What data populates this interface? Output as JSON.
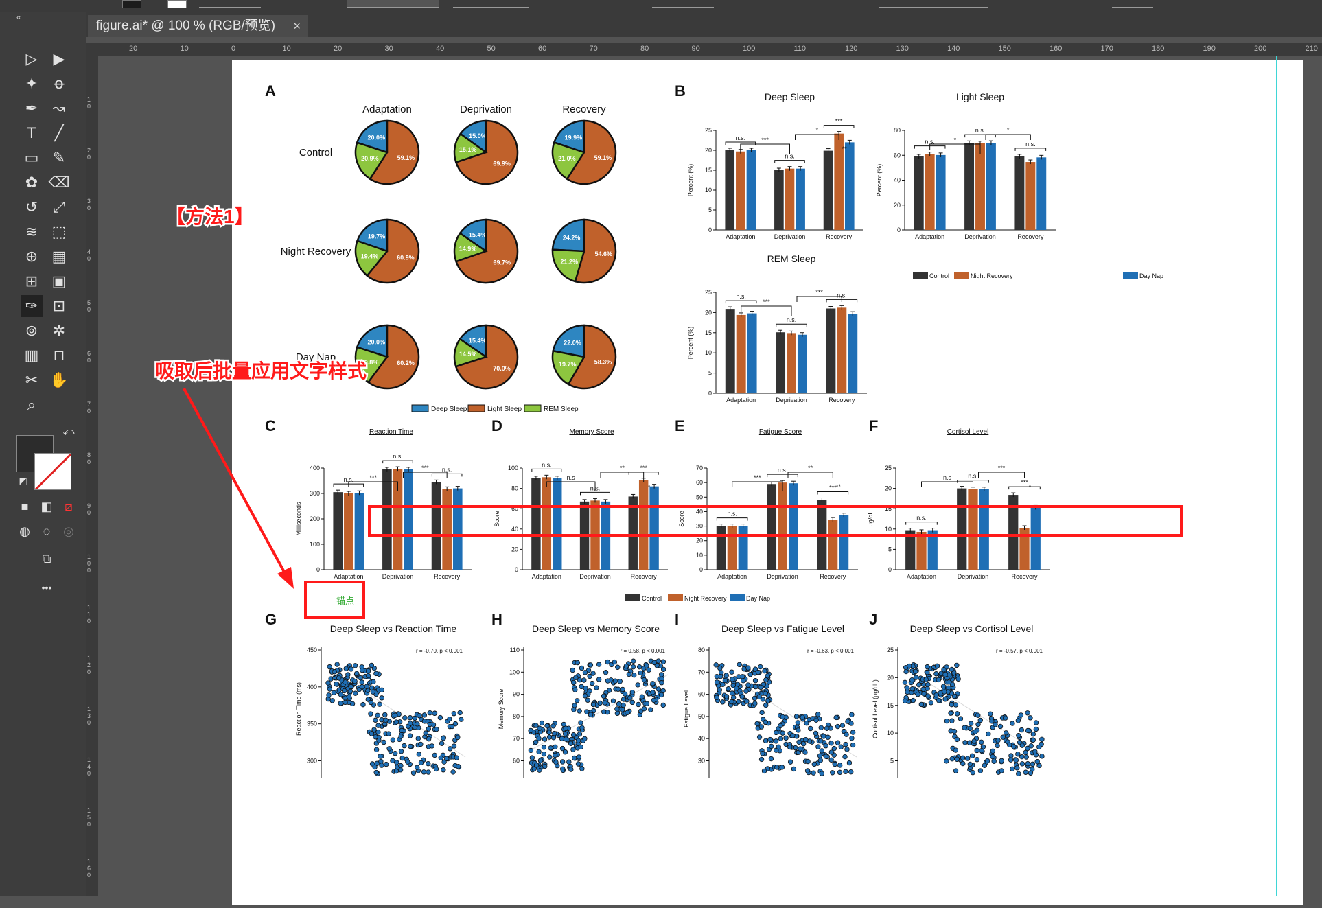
{
  "document": {
    "tab_title": "figure.ai* @ 100 % (RGB/预览)",
    "close": "×"
  },
  "toolbar": {
    "collapse": "«",
    "tools": [
      "selection-tool",
      "direct-selection-tool",
      "magic-wand-tool",
      "lasso-tool",
      "pen-tool",
      "curvature-tool",
      "type-tool",
      "line-tool",
      "rectangle-tool",
      "paintbrush-tool",
      "shaper-tool",
      "eraser-tool",
      "rotate-tool",
      "scale-tool",
      "warp-tool",
      "free-transform-tool",
      "shape-builder-tool",
      "perspective-grid-tool",
      "mesh-tool",
      "gradient-tool",
      "eyedropper-tool",
      "measure-tool",
      "blend-tool",
      "symbol-sprayer-tool",
      "column-graph-tool",
      "artboard-tool",
      "slice-tool",
      "hand-tool",
      "zoom-tool"
    ],
    "more": "•••"
  },
  "ruler": {
    "h_labels": [
      "20",
      "10",
      "0",
      "10",
      "20",
      "30",
      "40",
      "50",
      "60",
      "70",
      "80",
      "90",
      "100",
      "110",
      "120",
      "130",
      "140",
      "150",
      "160",
      "170",
      "180",
      "190",
      "200",
      "210"
    ],
    "v_labels": [
      "1 0",
      "2 0",
      "3 0",
      "4 0",
      "5 0",
      "6 0",
      "7 0",
      "8 0",
      "9 0",
      "1 0 0",
      "1 1 0",
      "1 2 0",
      "1 3 0",
      "1 4 0",
      "1 5 0",
      "1 6 0"
    ]
  },
  "annotations": {
    "method": "【方法1】",
    "apply": "吸取后批量应用文字样式",
    "eyedropper_hint": "锚点"
  },
  "colors": {
    "deep": "#2e86c1",
    "light": "#c0612b",
    "rem": "#8dc63f",
    "control": "#333333",
    "night": "#c0612b",
    "daynap": "#1f6fb5",
    "red": "#ff1a1a",
    "guide": "#3fd6d6"
  },
  "panel_labels": {
    "A": "A",
    "B": "B",
    "C": "C",
    "D": "D",
    "E": "E",
    "F": "F",
    "G": "G",
    "H": "H",
    "I": "I",
    "J": "J"
  },
  "pie_block": {
    "columns": [
      "Adaptation",
      "Deprivation",
      "Recovery"
    ],
    "rows": [
      "Control",
      "Night Recovery",
      "Day Nap"
    ],
    "legend": [
      "Deep Sleep",
      "Light Sleep",
      "REM Sleep"
    ]
  },
  "bar_legend": {
    "control": "Control",
    "night": "Night Recovery",
    "daynap": "Day Nap"
  },
  "c_titles": {
    "c": "Reaction Time",
    "d": "Memory Score",
    "e": "Fatigue Score",
    "f": "Cortisol Level"
  },
  "scatter_titles": {
    "g": "Deep Sleep vs Reaction Time",
    "h": "Deep Sleep vs Memory Score",
    "i": "Deep Sleep vs Fatigue Level",
    "j": "Deep Sleep vs Cortisol Level"
  },
  "chart_data": [
    {
      "type": "pie",
      "row": "Control",
      "column": "Adaptation",
      "labels": [
        "Deep Sleep",
        "Light Sleep",
        "REM Sleep"
      ],
      "values": [
        20.0,
        59.1,
        20.9
      ],
      "value_labels": [
        "20.0%",
        "59.1%",
        "20.9%"
      ]
    },
    {
      "type": "pie",
      "row": "Control",
      "column": "Deprivation",
      "labels": [
        "Deep Sleep",
        "Light Sleep",
        "REM Sleep"
      ],
      "values": [
        15.0,
        69.9,
        15.1
      ],
      "value_labels": [
        "15.0%",
        "69.9%",
        "15.1%"
      ]
    },
    {
      "type": "pie",
      "row": "Control",
      "column": "Recovery",
      "labels": [
        "Deep Sleep",
        "Light Sleep",
        "REM Sleep"
      ],
      "values": [
        19.9,
        59.1,
        21.0
      ],
      "value_labels": [
        "19.9%",
        "59.1%",
        "21.0%"
      ]
    },
    {
      "type": "pie",
      "row": "Night Recovery",
      "column": "Adaptation",
      "labels": [
        "Deep Sleep",
        "Light Sleep",
        "REM Sleep"
      ],
      "values": [
        19.7,
        60.9,
        19.4
      ],
      "value_labels": [
        "19.7%",
        "60.9%",
        "19.4%"
      ]
    },
    {
      "type": "pie",
      "row": "Night Recovery",
      "column": "Deprivation",
      "labels": [
        "Deep Sleep",
        "Light Sleep",
        "REM Sleep"
      ],
      "values": [
        15.4,
        69.7,
        14.9
      ],
      "value_labels": [
        "15.4%",
        "69.7%",
        "14.9%"
      ]
    },
    {
      "type": "pie",
      "row": "Night Recovery",
      "column": "Recovery",
      "labels": [
        "Deep Sleep",
        "Light Sleep",
        "REM Sleep"
      ],
      "values": [
        24.2,
        54.6,
        21.2
      ],
      "value_labels": [
        "24.2%",
        "54.6%",
        "21.2%"
      ]
    },
    {
      "type": "pie",
      "row": "Day Nap",
      "column": "Adaptation",
      "labels": [
        "Deep Sleep",
        "Light Sleep",
        "REM Sleep"
      ],
      "values": [
        20.0,
        60.2,
        19.8
      ],
      "value_labels": [
        "20.0%",
        "60.2%",
        "19.8%"
      ]
    },
    {
      "type": "pie",
      "row": "Day Nap",
      "column": "Deprivation",
      "labels": [
        "Deep Sleep",
        "Light Sleep",
        "REM Sleep"
      ],
      "values": [
        15.4,
        70.0,
        14.5
      ],
      "value_labels": [
        "15.4%",
        "70.0%",
        "14.5%"
      ]
    },
    {
      "type": "pie",
      "row": "Day Nap",
      "column": "Recovery",
      "labels": [
        "Deep Sleep",
        "Light Sleep",
        "REM Sleep"
      ],
      "values": [
        22.0,
        58.3,
        19.7
      ],
      "value_labels": [
        "22.0%",
        "58.3%",
        "19.7%"
      ]
    },
    {
      "type": "bar",
      "title": "Deep Sleep",
      "ylabel": "Percent (%)",
      "ylim": [
        0,
        25
      ],
      "yticks": [
        0,
        5,
        10,
        15,
        20,
        25
      ],
      "categories": [
        "Adaptation",
        "Deprivation",
        "Recovery"
      ],
      "series": [
        {
          "name": "Control",
          "values": [
            20.0,
            15.0,
            19.9
          ]
        },
        {
          "name": "Night Recovery",
          "values": [
            19.7,
            15.4,
            24.2
          ]
        },
        {
          "name": "Day Nap",
          "values": [
            20.0,
            15.4,
            22.0
          ]
        }
      ],
      "annotations": [
        "n.s.",
        "n.s.",
        "***",
        "***",
        "*",
        "**"
      ]
    },
    {
      "type": "bar",
      "title": "Light Sleep",
      "ylabel": "Percent (%)",
      "ylim": [
        0,
        80
      ],
      "yticks": [
        0,
        20,
        40,
        60,
        80
      ],
      "categories": [
        "Adaptation",
        "Deprivation",
        "Recovery"
      ],
      "series": [
        {
          "name": "Control",
          "values": [
            59.1,
            69.9,
            59.1
          ]
        },
        {
          "name": "Night Recovery",
          "values": [
            60.9,
            69.7,
            54.6
          ]
        },
        {
          "name": "Day Nap",
          "values": [
            60.2,
            70.0,
            58.3
          ]
        }
      ],
      "annotations": [
        "n.s.",
        "n.s.",
        "n.s.",
        "*",
        "*"
      ]
    },
    {
      "type": "bar",
      "title": "REM Sleep",
      "ylabel": "Percent (%)",
      "ylim": [
        0,
        25
      ],
      "yticks": [
        0,
        5,
        10,
        15,
        20,
        25
      ],
      "categories": [
        "Adaptation",
        "Deprivation",
        "Recovery"
      ],
      "series": [
        {
          "name": "Control",
          "values": [
            20.9,
            15.1,
            21.0
          ]
        },
        {
          "name": "Night Recovery",
          "values": [
            19.4,
            14.9,
            21.2
          ]
        },
        {
          "name": "Day Nap",
          "values": [
            19.8,
            14.5,
            19.7
          ]
        }
      ],
      "annotations": [
        "n.s.",
        "n.s.",
        "n.s.",
        "***",
        "***"
      ]
    },
    {
      "type": "bar",
      "title": "Reaction Time",
      "ylabel": "Milliseconds",
      "ylim": [
        0,
        400
      ],
      "yticks": [
        0,
        100,
        200,
        300,
        400
      ],
      "categories": [
        "Adaptation",
        "Deprivation",
        "Recovery"
      ],
      "series": [
        {
          "name": "Control",
          "values": [
            305,
            395,
            345
          ]
        },
        {
          "name": "Night Recovery",
          "values": [
            300,
            397,
            318
          ]
        },
        {
          "name": "Day Nap",
          "values": [
            302,
            395,
            320
          ]
        }
      ],
      "annotations": [
        "n.s.",
        "n.s.",
        "n.s.",
        "***",
        "***"
      ]
    },
    {
      "type": "bar",
      "title": "Memory Score",
      "ylabel": "Score",
      "ylim": [
        0,
        100
      ],
      "yticks": [
        0,
        20,
        40,
        60,
        80,
        100
      ],
      "categories": [
        "Adaptation",
        "Deprivation",
        "Recovery"
      ],
      "series": [
        {
          "name": "Control",
          "values": [
            90,
            67,
            72
          ]
        },
        {
          "name": "Night Recovery",
          "values": [
            91,
            68,
            88
          ]
        },
        {
          "name": "Day Nap",
          "values": [
            90,
            67,
            82
          ]
        }
      ],
      "annotations": [
        "n.s.",
        "n.s.",
        "***",
        "n.s",
        "**",
        "*"
      ]
    },
    {
      "type": "bar",
      "title": "Fatigue Score",
      "ylabel": "Score",
      "ylim": [
        0,
        70
      ],
      "yticks": [
        0,
        10,
        20,
        30,
        40,
        50,
        60,
        70
      ],
      "categories": [
        "Adaptation",
        "Deprivation",
        "Recovery"
      ],
      "series": [
        {
          "name": "Control",
          "values": [
            30,
            59,
            48
          ]
        },
        {
          "name": "Night Recovery",
          "values": [
            30,
            60,
            34.5
          ]
        },
        {
          "name": "Day Nap",
          "values": [
            30,
            59.5,
            37.5
          ]
        }
      ],
      "annotations": [
        "n.s.",
        "n.s.",
        "***",
        "***",
        "**",
        "**"
      ]
    },
    {
      "type": "bar",
      "title": "Cortisol Level",
      "ylabel": "μg/dL",
      "ylim": [
        0,
        25
      ],
      "yticks": [
        0,
        5,
        10,
        15,
        20,
        25
      ],
      "categories": [
        "Adaptation",
        "Deprivation",
        "Recovery"
      ],
      "series": [
        {
          "name": "Control",
          "values": [
            9.7,
            20.0,
            18.4
          ]
        },
        {
          "name": "Night Recovery",
          "values": [
            9.3,
            19.8,
            10.3
          ]
        },
        {
          "name": "Day Nap",
          "values": [
            9.7,
            19.8,
            15.3
          ]
        }
      ],
      "annotations": [
        "n.s.",
        "n.s.",
        "***",
        "n.s",
        "***",
        "*"
      ]
    },
    {
      "type": "scatter",
      "title": "Deep Sleep vs Reaction Time",
      "ylabel": "Reaction Time (ms)",
      "yticks": [
        300,
        350,
        400,
        450
      ],
      "stat": "r = -0.70, p < 0.001"
    },
    {
      "type": "scatter",
      "title": "Deep Sleep vs Memory Score",
      "ylabel": "Memory Score",
      "yticks": [
        60,
        70,
        80,
        90,
        100,
        110
      ],
      "stat": "r = 0.58, p < 0.001"
    },
    {
      "type": "scatter",
      "title": "Deep Sleep vs Fatigue Level",
      "ylabel": "Fatigue Level",
      "yticks": [
        30,
        40,
        50,
        60,
        70,
        80
      ],
      "stat": "r = -0.63, p < 0.001"
    },
    {
      "type": "scatter",
      "title": "Deep Sleep vs Cortisol Level",
      "ylabel": "Cortisol Level (μg/dL)",
      "yticks": [
        5,
        10,
        15,
        20,
        25
      ],
      "stat": "r = -0.57, p < 0.001"
    }
  ]
}
